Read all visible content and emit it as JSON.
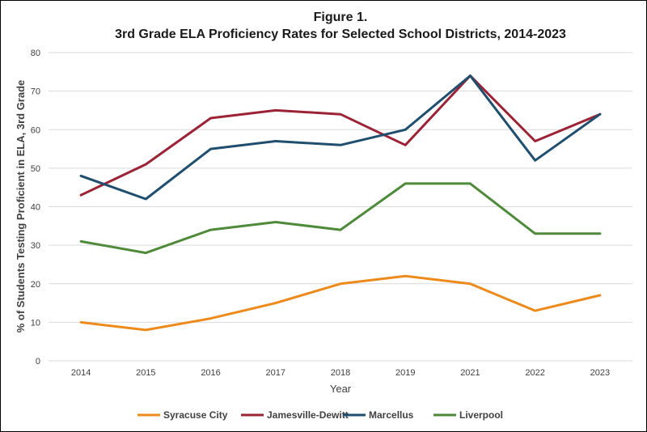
{
  "chart_data": {
    "type": "line",
    "title_line1": "Figure 1.",
    "title_line2": "3rd Grade ELA Proficiency Rates for Selected School Districts, 2014-2023",
    "xlabel": "Year",
    "ylabel": "% of Students Testing Proficient in ELA, 3rd Grade",
    "categories": [
      "2014",
      "2015",
      "2016",
      "2017",
      "2018",
      "2019",
      "2021",
      "2022",
      "2023"
    ],
    "ylim": [
      0,
      80
    ],
    "yticks": [
      0,
      10,
      20,
      30,
      40,
      50,
      60,
      70,
      80
    ],
    "grid": "horizontal",
    "legend_position": "bottom",
    "series": [
      {
        "name": "Syracuse City",
        "color": "#ed8a1c",
        "values": [
          10,
          8,
          11,
          15,
          20,
          22,
          20,
          13,
          17
        ]
      },
      {
        "name": "Jamesville-Dewitt",
        "color": "#9b2335",
        "values": [
          43,
          51,
          63,
          65,
          64,
          56,
          74,
          57,
          64
        ]
      },
      {
        "name": "Marcellus",
        "color": "#1f4e6e",
        "values": [
          48,
          42,
          55,
          57,
          56,
          60,
          74,
          52,
          64
        ]
      },
      {
        "name": "Liverpool",
        "color": "#4e8a3a",
        "values": [
          31,
          28,
          34,
          36,
          34,
          46,
          46,
          33,
          33
        ]
      }
    ]
  }
}
